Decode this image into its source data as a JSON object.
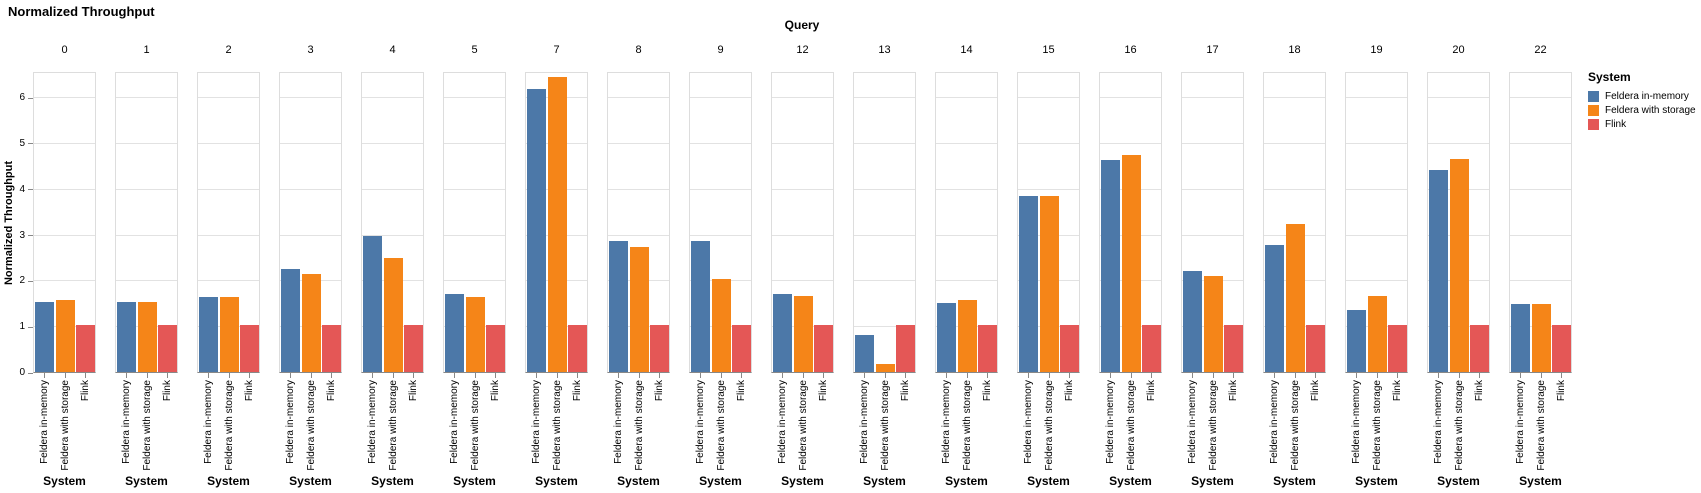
{
  "page": {
    "title": "Normalized Throughput"
  },
  "axes": {
    "facet_title": "Query",
    "y_title": "Normalized Throughput",
    "x_title": "System",
    "y_ticks": [
      0,
      1,
      2,
      3,
      4,
      5,
      6
    ]
  },
  "legend": {
    "title": "System",
    "items": [
      {
        "label": "Feldera in-memory",
        "color": "#4c78a8"
      },
      {
        "label": "Feldera with storage",
        "color": "#f58518"
      },
      {
        "label": "Flink",
        "color": "#e45756"
      }
    ]
  },
  "chart_data": {
    "type": "bar",
    "title": "Normalized Throughput",
    "facet_field": "Query",
    "xlabel": "System",
    "ylabel": "Normalized Throughput",
    "ylim": [
      0,
      6.55
    ],
    "grid": true,
    "legend_position": "right",
    "categories": [
      "Feldera in-memory",
      "Feldera with storage",
      "Flink"
    ],
    "series_colors": [
      "#4c78a8",
      "#f58518",
      "#e45756"
    ],
    "facets": [
      {
        "query": "0",
        "values": [
          1.53,
          1.58,
          1.02
        ]
      },
      {
        "query": "1",
        "values": [
          1.52,
          1.52,
          1.02
        ]
      },
      {
        "query": "2",
        "values": [
          1.63,
          1.64,
          1.02
        ]
      },
      {
        "query": "3",
        "values": [
          2.26,
          2.15,
          1.02
        ]
      },
      {
        "query": "4",
        "values": [
          2.98,
          2.5,
          1.02
        ]
      },
      {
        "query": "5",
        "values": [
          1.7,
          1.63,
          1.02
        ]
      },
      {
        "query": "7",
        "values": [
          6.18,
          6.45,
          1.02
        ]
      },
      {
        "query": "8",
        "values": [
          2.87,
          2.72,
          1.02
        ]
      },
      {
        "query": "9",
        "values": [
          2.85,
          2.03,
          1.02
        ]
      },
      {
        "query": "12",
        "values": [
          1.7,
          1.65,
          1.02
        ]
      },
      {
        "query": "13",
        "values": [
          0.8,
          0.18,
          1.02
        ]
      },
      {
        "query": "14",
        "values": [
          1.5,
          1.58,
          1.02
        ]
      },
      {
        "query": "15",
        "values": [
          3.84,
          3.84,
          1.02
        ]
      },
      {
        "query": "16",
        "values": [
          4.62,
          4.73,
          1.02
        ]
      },
      {
        "query": "17",
        "values": [
          2.2,
          2.1,
          1.02
        ]
      },
      {
        "query": "18",
        "values": [
          2.78,
          3.24,
          1.02
        ]
      },
      {
        "query": "19",
        "values": [
          1.36,
          1.67,
          1.02
        ]
      },
      {
        "query": "20",
        "values": [
          4.42,
          4.65,
          1.02
        ]
      },
      {
        "query": "22",
        "values": [
          1.48,
          1.48,
          1.02
        ]
      }
    ]
  }
}
